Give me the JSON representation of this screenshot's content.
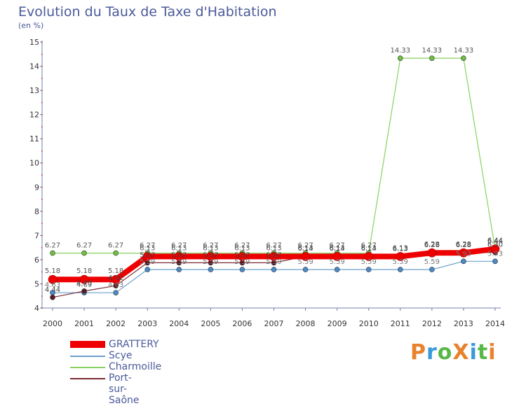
{
  "title": "Evolution du Taux de Taxe d'Habitation",
  "subtitle": "(en %)",
  "logo": {
    "text": "ProXiti",
    "colors": [
      "#e8822c",
      "#3a9ad9",
      "#58b847",
      "#e8822c",
      "#3a9ad9",
      "#58b847",
      "#e8822c"
    ]
  },
  "chart_data": {
    "type": "line",
    "title": "Evolution du Taux de Taxe d'Habitation",
    "ylabel": "(en %)",
    "xlabel": "",
    "ylim": [
      4,
      15
    ],
    "yticks": [
      4,
      5,
      6,
      7,
      8,
      9,
      10,
      11,
      12,
      13,
      14,
      15
    ],
    "grid": false,
    "legend_position": "bottom-left",
    "categories": [
      "2000",
      "2001",
      "2002",
      "2003",
      "2004",
      "2005",
      "2006",
      "2007",
      "2008",
      "2009",
      "2010",
      "2011",
      "2012",
      "2013",
      "2014"
    ],
    "series": [
      {
        "name": "Charmoille",
        "color": "#88d160",
        "values": [
          6.27,
          6.27,
          6.27,
          6.27,
          6.27,
          6.27,
          6.27,
          6.27,
          6.27,
          6.27,
          6.27,
          14.33,
          14.33,
          14.33,
          6.44
        ],
        "labels": [
          "6.27",
          "6.27",
          "6.27",
          "6.27",
          "6.27",
          "6.27",
          "6.27",
          "6.27",
          "6.27",
          "6.27",
          "6.27",
          "14.33",
          "14.33",
          "14.33",
          "6.44"
        ]
      },
      {
        "name": "Scye",
        "color": "#6aa0cc",
        "values": [
          4.63,
          4.63,
          4.63,
          5.59,
          5.59,
          5.59,
          5.59,
          5.59,
          5.59,
          5.59,
          5.59,
          5.59,
          5.59,
          5.93,
          5.93
        ],
        "labels": [
          "4.63",
          "4.63",
          "4.63",
          "5.59",
          "5.59",
          "5.59",
          "5.59",
          "5.59",
          "5.59",
          "5.59",
          "5.59",
          "5.59",
          "5.59",
          "5.93",
          "5.93"
        ]
      },
      {
        "name": "Port-sur-Saône",
        "color": "#7a2a32",
        "values": [
          4.44,
          4.7,
          4.92,
          5.87,
          5.87,
          5.87,
          5.87,
          5.87,
          6.14,
          6.14,
          6.14,
          6.13,
          6.28,
          6.28,
          6.3
        ],
        "labels": [
          "4.44",
          "4.70",
          "4.92",
          "5.87",
          "5.87",
          "5.87",
          "5.87",
          "5.87",
          "6.14",
          "6.14",
          "6.14",
          "6.13",
          "6.28",
          "6.28",
          "6.30"
        ]
      },
      {
        "name": "GRATTERY",
        "color": "#ee0000",
        "values": [
          5.18,
          5.18,
          5.18,
          6.13,
          6.13,
          6.13,
          6.13,
          6.13,
          6.13,
          6.13,
          6.13,
          6.13,
          6.28,
          6.28,
          6.44
        ],
        "labels": [
          "5.18",
          "5.18",
          "5.18",
          "6.13",
          "6.13",
          "6.13",
          "6.13",
          "6.13",
          "6.13",
          "6.13",
          "6.13",
          "6.13",
          "6.28",
          "6.28",
          "6.44"
        ]
      }
    ],
    "legend": [
      "GRATTERY",
      "Scye",
      "Charmoille",
      "Port-sur-Saône"
    ]
  }
}
